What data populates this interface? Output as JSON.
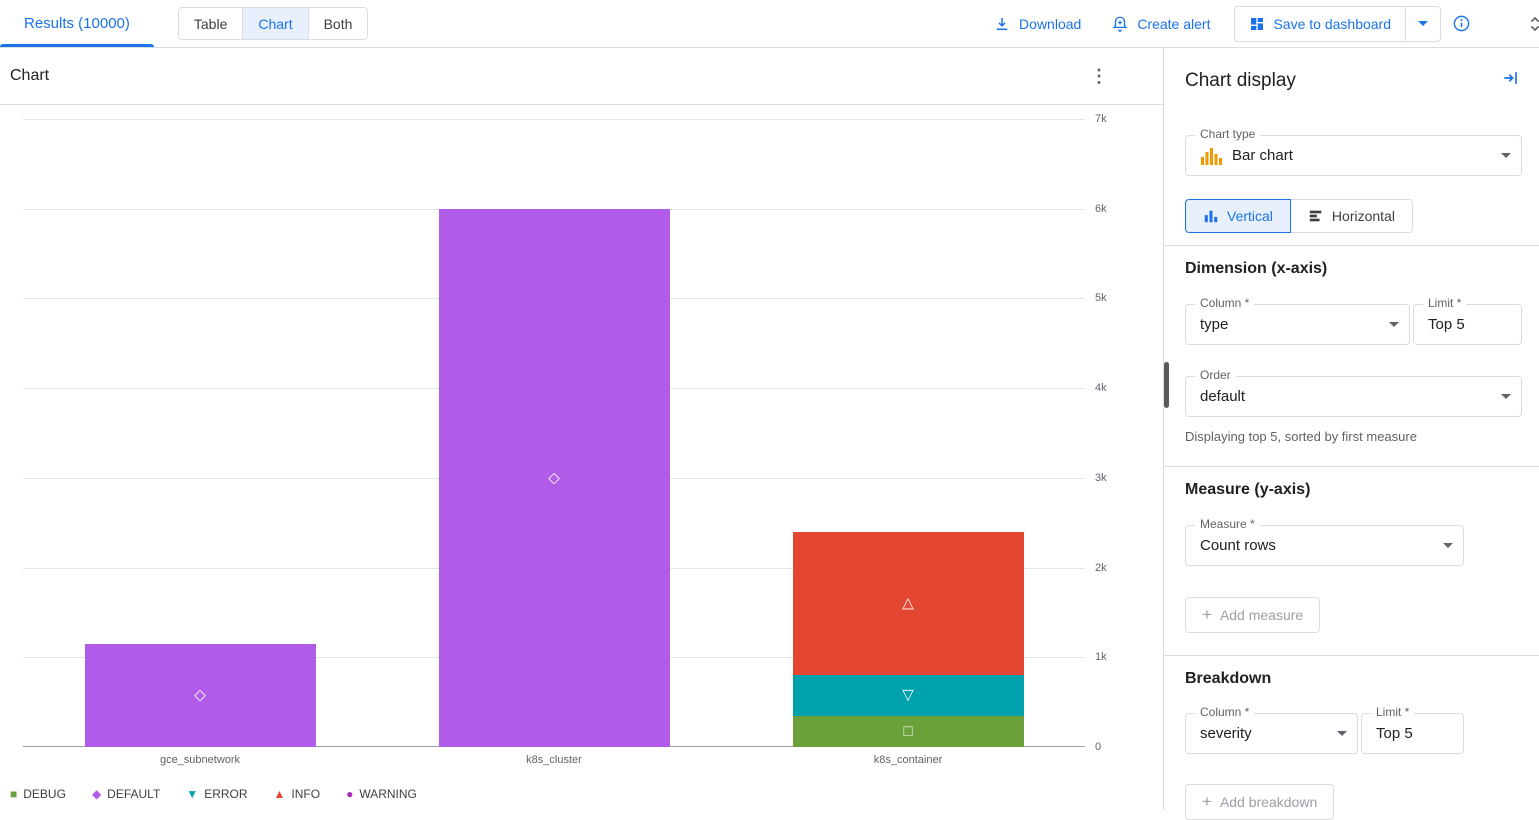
{
  "topbar": {
    "results_tab": "Results (10000)",
    "views": [
      "Table",
      "Chart",
      "Both"
    ],
    "selected_view": "Chart",
    "download_label": "Download",
    "create_alert_label": "Create alert",
    "save_to_dashboard_label": "Save to dashboard"
  },
  "chart_panel": {
    "title": "Chart"
  },
  "chart_data": {
    "type": "bar",
    "stacked": true,
    "title": "Chart",
    "categories": [
      "gce_subnetwork",
      "k8s_cluster",
      "k8s_container"
    ],
    "series": [
      {
        "name": "DEBUG",
        "color": "#6ba03a",
        "marker": "square",
        "values": [
          0,
          0,
          350
        ]
      },
      {
        "name": "DEFAULT",
        "color": "#b05ce8",
        "marker": "diamond",
        "values": [
          1150,
          6000,
          0
        ]
      },
      {
        "name": "ERROR",
        "color": "#00a2ad",
        "marker": "triangle-down",
        "values": [
          0,
          0,
          450
        ]
      },
      {
        "name": "INFO",
        "color": "#e34631",
        "marker": "triangle-up",
        "values": [
          0,
          0,
          1600
        ]
      },
      {
        "name": "WARNING",
        "color": "#aa2bb5",
        "marker": "circle",
        "values": [
          0,
          0,
          0
        ]
      }
    ],
    "y_tick_values": [
      0,
      1000,
      2000,
      3000,
      4000,
      5000,
      6000,
      7000
    ],
    "y_tick_labels": [
      "0",
      "1k",
      "2k",
      "3k",
      "4k",
      "5k",
      "6k",
      "7k"
    ],
    "ylim": [
      0,
      7000
    ],
    "grid": true,
    "legend_position": "bottom"
  },
  "panel": {
    "title": "Chart display",
    "chart_type": {
      "label": "Chart type",
      "value": "Bar chart"
    },
    "orientation": {
      "vertical_label": "Vertical",
      "horizontal_label": "Horizontal",
      "selected": "Vertical"
    },
    "dimension": {
      "heading": "Dimension (x-axis)",
      "column_label": "Column *",
      "column_value": "type",
      "limit_label": "Limit *",
      "limit_value": "Top 5",
      "order_label": "Order",
      "order_value": "default",
      "helper_text": "Displaying top 5, sorted by first measure"
    },
    "measure": {
      "heading": "Measure (y-axis)",
      "measure_label": "Measure *",
      "measure_value": "Count rows",
      "add_button_label": "Add measure"
    },
    "breakdown": {
      "heading": "Breakdown",
      "column_label": "Column *",
      "column_value": "severity",
      "limit_label": "Limit *",
      "limit_value": "Top 5",
      "add_button_label": "Add breakdown"
    }
  },
  "colors": {
    "accent_blue": "#1a73e8",
    "selected_bg": "#e8f0fe",
    "border": "#dadce0",
    "text_primary": "#202124",
    "text_secondary": "#5f6368"
  }
}
